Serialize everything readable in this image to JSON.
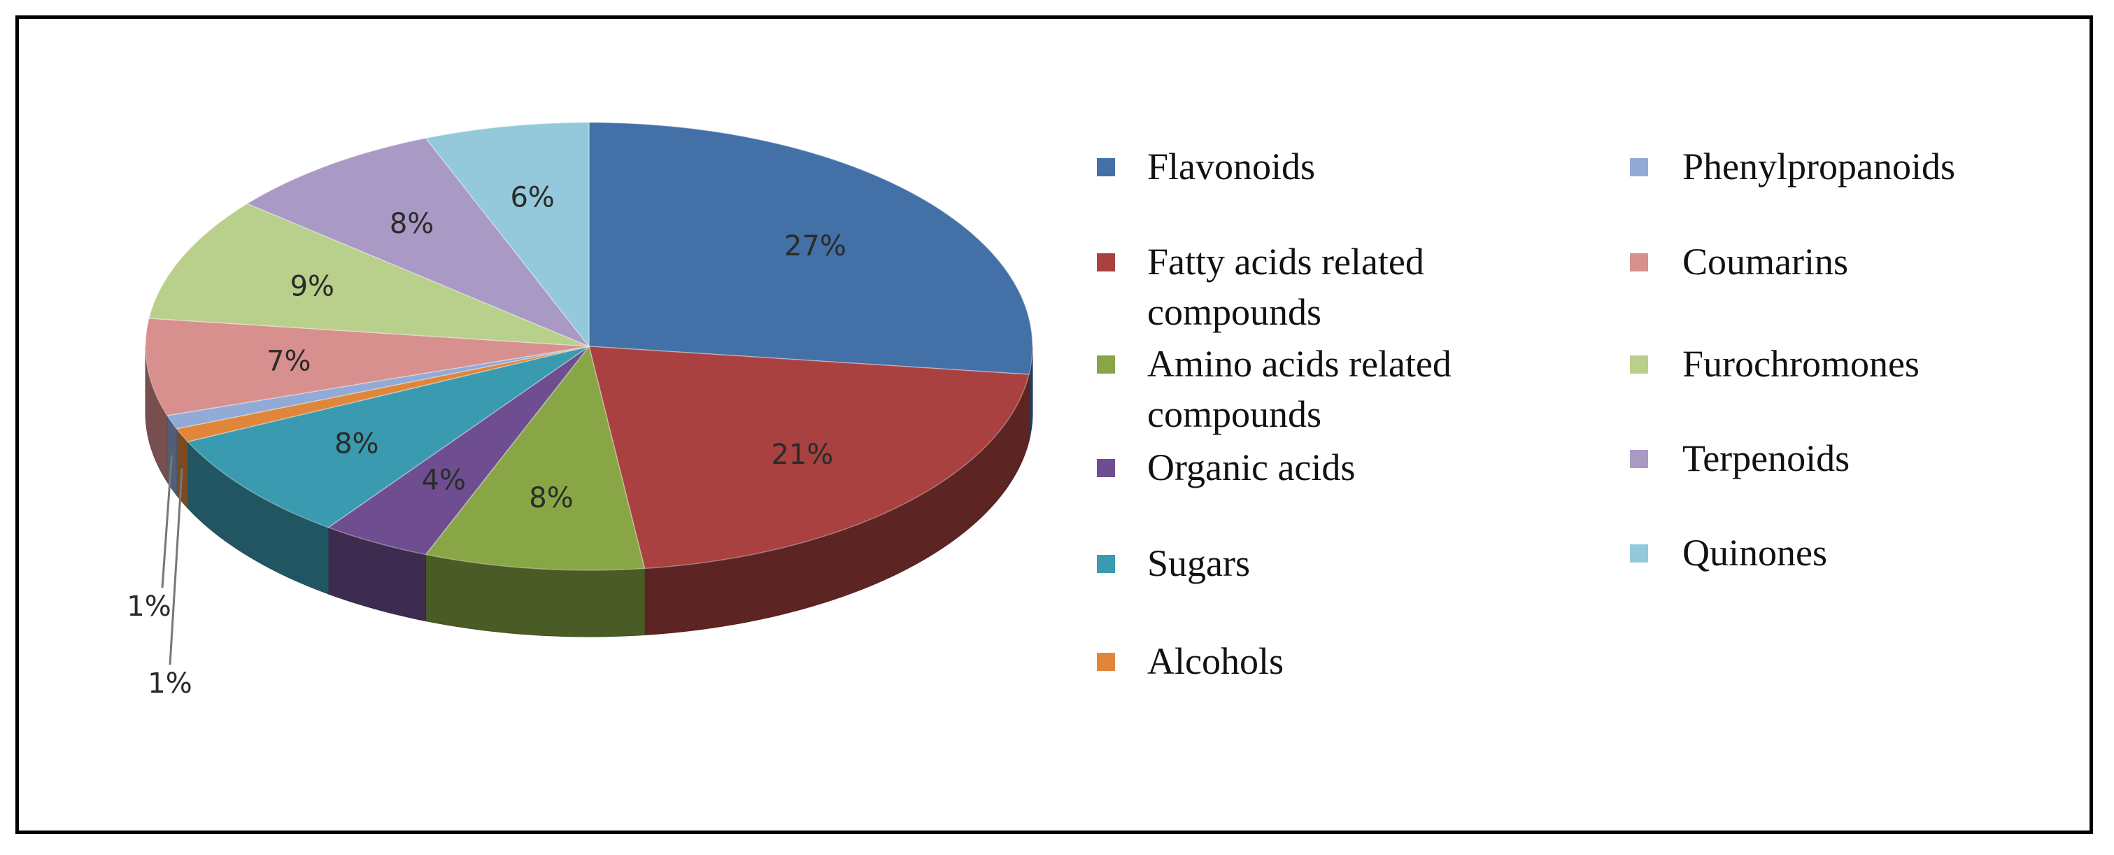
{
  "chart_data": {
    "type": "pie",
    "variant": "3d-pie",
    "legend_placement": "right, two columns",
    "slices": [
      {
        "label": "Flavonoids",
        "value": 27,
        "label_text": "27%",
        "color": "#4470A8"
      },
      {
        "label": "Fatty acids related compounds",
        "value": 21,
        "label_text": "21%",
        "color": "#A8413F"
      },
      {
        "label": "Amino acids related compounds",
        "value": 8,
        "label_text": "8%",
        "color": "#88A645"
      },
      {
        "label": "Organic acids",
        "value": 4,
        "label_text": "4%",
        "color": "#6E4E91"
      },
      {
        "label": "Sugars",
        "value": 8,
        "label_text": "8%",
        "color": "#3A9AB0"
      },
      {
        "label": "Alcohols",
        "value": 1,
        "label_text": "1%",
        "color": "#E0863A"
      },
      {
        "label": "Phenylpropanoids",
        "value": 1,
        "label_text": "1%",
        "color": "#91ABD6"
      },
      {
        "label": "Coumarins",
        "value": 7,
        "label_text": "7%",
        "color": "#D7908E"
      },
      {
        "label": "Furochromones",
        "value": 9,
        "label_text": "9%",
        "color": "#B9CF8C"
      },
      {
        "label": "Terpenoids",
        "value": 8,
        "label_text": "8%",
        "color": "#A999C5"
      },
      {
        "label": "Quinones",
        "value": 6,
        "label_text": "6%",
        "color": "#93C9DA"
      }
    ],
    "legend": {
      "column1": [
        {
          "lines": [
            "Flavonoids"
          ],
          "color": "#4470A8"
        },
        {
          "lines": [
            "Fatty acids related",
            "compounds"
          ],
          "color": "#A8413F"
        },
        {
          "lines": [
            "Amino acids related",
            "compounds"
          ],
          "color": "#88A645"
        },
        {
          "lines": [
            "Organic acids"
          ],
          "color": "#6E4E91"
        },
        {
          "lines": [
            "Sugars"
          ],
          "color": "#3A9AB0"
        },
        {
          "lines": [
            "Alcohols"
          ],
          "color": "#E0863A"
        }
      ],
      "column2": [
        {
          "lines": [
            "Phenylpropanoids"
          ],
          "color": "#91ABD6"
        },
        {
          "lines": [
            "Coumarins"
          ],
          "color": "#D7908E"
        },
        {
          "lines": [
            "Furochromones"
          ],
          "color": "#B9CF8C"
        },
        {
          "lines": [
            "Terpenoids"
          ],
          "color": "#A999C5"
        },
        {
          "lines": [
            "Quinones"
          ],
          "color": "#93C9DA"
        }
      ]
    }
  }
}
